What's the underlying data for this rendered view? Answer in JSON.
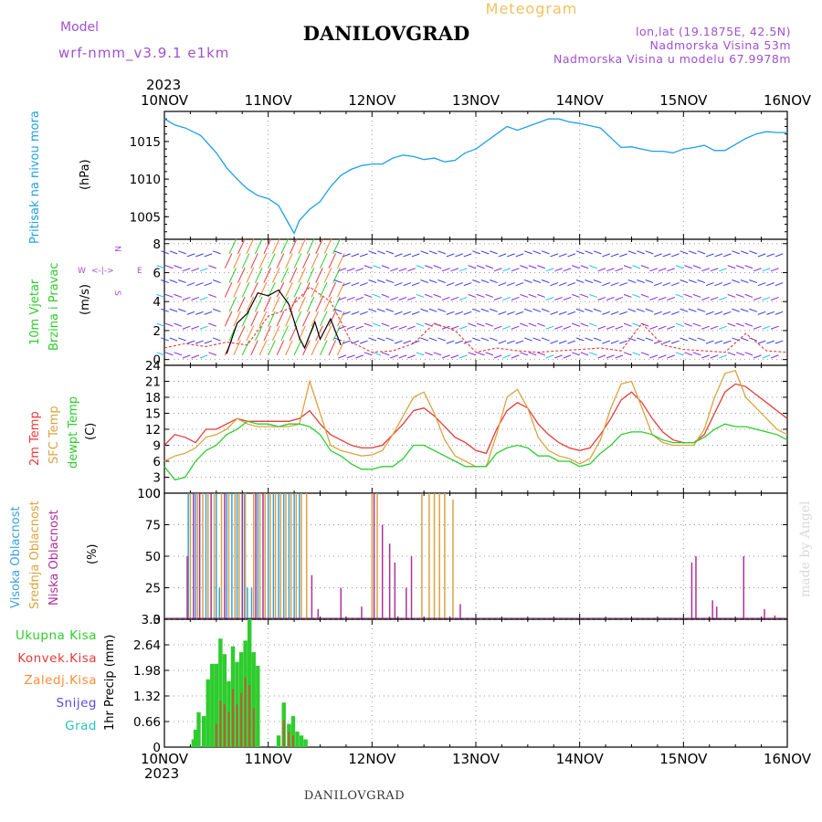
{
  "header": {
    "model_label": "Model",
    "model_name": "wrf-nmm_v3.9.1  e1km",
    "title": "DANILOVGRAD",
    "meteogram_label": "Meteogram",
    "lonlat": "lon,lat (19.1875E, 42.5N)",
    "elevation": "Nadmorska Visina 53m",
    "model_elevation": "Nadmorska Visina u modelu 67.9978m"
  },
  "time_axis": {
    "year": "2023",
    "ticks": [
      "10NOV",
      "11NOV",
      "12NOV",
      "13NOV",
      "14NOV",
      "15NOV",
      "16NOV"
    ]
  },
  "footer": {
    "station": "DANILOVGRAD",
    "credit": "made by Angel"
  },
  "colors": {
    "pressure": "#1ea0e6",
    "temp": "#e83a3a",
    "sfc_temp": "#d9a440",
    "dewpt": "#2ecc2e",
    "wind_speed": "#000000",
    "wind_dir": "#e83a3a",
    "high_cloud": "#3aa0e0",
    "mid_cloud": "#d9a440",
    "low_cloud": "#b0309a",
    "total_precip": "#2ecc2e",
    "conv_precip": "#e83a3a",
    "frozen_precip": "#ff8c3a",
    "snow": "#5a4bdc",
    "hail": "#2ec0c0",
    "compass": "#a050d0"
  },
  "chart_data": [
    {
      "type": "line",
      "title": "",
      "ylabel": "Pritisak na nivou mora",
      "units": "(hPa)",
      "ylim": [
        1002,
        1019
      ],
      "yticks": [
        1005,
        1010,
        1015
      ],
      "series": [
        {
          "name": "Pritisak na nivou mora",
          "x": [
            0,
            0.1,
            0.2,
            0.35,
            0.5,
            0.6,
            0.7,
            0.8,
            0.9,
            1.0,
            1.1,
            1.2,
            1.25,
            1.3,
            1.4,
            1.5,
            1.6,
            1.7,
            1.8,
            1.9,
            2.0,
            2.1,
            2.2,
            2.3,
            2.4,
            2.5,
            2.6,
            2.7,
            2.8,
            2.9,
            3.0,
            3.1,
            3.2,
            3.3,
            3.4,
            3.5,
            3.6,
            3.7,
            3.8,
            3.9,
            4.0,
            4.1,
            4.2,
            4.3,
            4.4,
            4.5,
            4.6,
            4.7,
            4.8,
            4.9,
            5.0,
            5.1,
            5.2,
            5.3,
            5.4,
            5.5,
            5.6,
            5.7,
            5.8,
            5.9,
            6.0
          ],
          "values": [
            1018,
            1017.2,
            1016.8,
            1015.8,
            1013.5,
            1011.5,
            1010,
            1008.7,
            1007.8,
            1007.4,
            1006.5,
            1004,
            1002.8,
            1004.5,
            1006,
            1007,
            1009,
            1010.5,
            1011.3,
            1011.8,
            1012,
            1012,
            1012.8,
            1013.2,
            1013,
            1012.6,
            1012.8,
            1012.3,
            1012.5,
            1013.5,
            1014,
            1015,
            1016,
            1017,
            1016.5,
            1017,
            1017.5,
            1018,
            1018,
            1017.6,
            1017.4,
            1017.1,
            1016.8,
            1015.5,
            1014.2,
            1014.3,
            1014,
            1013.7,
            1013.7,
            1013.5,
            1014,
            1014.2,
            1014.5,
            1013.8,
            1013.8,
            1014.6,
            1015.4,
            1016,
            1016.3,
            1016.2,
            1016.2
          ]
        }
      ]
    },
    {
      "type": "line",
      "title": "",
      "ylabel": "10m Vjetar Brzina i Pravac",
      "units": "(m/s)",
      "ylim": [
        -0.4,
        8.3
      ],
      "yticks": [
        0,
        2,
        4,
        6,
        8
      ],
      "compass": {
        "n": "N",
        "s": "S",
        "e": "E",
        "w": "W"
      },
      "series": [
        {
          "name": "Brzina",
          "x": [
            0.6,
            0.7,
            0.8,
            0.9,
            1.0,
            1.1,
            1.2,
            1.3,
            1.35,
            1.45,
            1.5,
            1.6,
            1.7
          ],
          "values": [
            0.4,
            2.5,
            3.2,
            4.6,
            4.4,
            4.8,
            3.8,
            1.5,
            0.8,
            2.6,
            1.4,
            2.8,
            1.0
          ]
        }
      ],
      "direction_series": {
        "name": "Pravac",
        "x": [
          0,
          0.2,
          0.4,
          0.6,
          0.8,
          1.0,
          1.2,
          1.4,
          1.6,
          1.8,
          2.0,
          2.2,
          2.4,
          2.6,
          2.8,
          3.0,
          3.2,
          3.4,
          3.6,
          3.8,
          4.0,
          4.2,
          4.4,
          4.6,
          4.8,
          5.0,
          5.2,
          5.4,
          5.6,
          5.8,
          6.0
        ],
        "values": [
          0.8,
          1.1,
          0.9,
          1.2,
          1.0,
          3.0,
          3.5,
          5.0,
          4.0,
          1.2,
          0.5,
          0.6,
          1.1,
          2.5,
          2.0,
          0.5,
          0.8,
          0.6,
          0.5,
          0.6,
          0.7,
          0.8,
          0.6,
          2.5,
          1.0,
          0.7,
          0.6,
          0.5,
          1.8,
          0.6,
          0.5
        ]
      }
    },
    {
      "type": "line",
      "title": "",
      "ylabels": [
        "2m Temp",
        "SFC Temp",
        "dewpt Temp"
      ],
      "units": "(C)",
      "ylim": [
        0,
        24
      ],
      "yticks": [
        0,
        3,
        6,
        9,
        12,
        15,
        18,
        21,
        24
      ],
      "x": [
        0,
        0.1,
        0.2,
        0.3,
        0.4,
        0.5,
        0.6,
        0.7,
        0.8,
        0.9,
        1.0,
        1.1,
        1.2,
        1.3,
        1.4,
        1.5,
        1.6,
        1.7,
        1.8,
        1.9,
        2.0,
        2.1,
        2.2,
        2.3,
        2.4,
        2.5,
        2.6,
        2.7,
        2.8,
        2.9,
        3.0,
        3.1,
        3.2,
        3.3,
        3.4,
        3.5,
        3.6,
        3.7,
        3.8,
        3.9,
        4.0,
        4.1,
        4.2,
        4.3,
        4.4,
        4.5,
        4.6,
        4.7,
        4.8,
        4.9,
        5.0,
        5.1,
        5.2,
        5.3,
        5.4,
        5.5,
        5.6,
        5.7,
        5.8,
        5.9,
        6.0
      ],
      "series": [
        {
          "name": "2m Temp",
          "values": [
            9,
            11,
            10.5,
            9.5,
            12,
            12,
            13,
            14,
            13.5,
            13.5,
            13.5,
            13.5,
            13.5,
            14,
            15.5,
            13,
            11,
            10,
            9,
            8.5,
            8.5,
            9,
            11,
            13,
            15.5,
            16,
            14.5,
            12.5,
            10.5,
            9.5,
            8,
            7.5,
            12,
            15.5,
            17,
            16,
            13,
            11,
            9.5,
            8.5,
            8,
            8.5,
            11,
            14,
            17.5,
            19,
            17,
            14,
            11.5,
            10,
            9.5,
            9.5,
            11,
            15,
            19,
            20.5,
            20,
            18.5,
            17,
            15.5,
            14
          ]
        },
        {
          "name": "SFC Temp",
          "values": [
            6,
            7,
            7.5,
            8.5,
            10.5,
            11,
            12,
            14,
            13,
            12.5,
            12.5,
            12.5,
            12.5,
            13,
            21,
            15,
            9,
            8,
            7.5,
            7,
            7.2,
            8,
            11,
            14.5,
            18,
            19,
            15,
            10,
            7,
            6,
            5,
            5,
            11,
            18,
            19.5,
            16,
            10.5,
            8,
            7,
            6.5,
            5.5,
            6.5,
            10,
            16,
            20.5,
            21,
            16,
            11,
            9.5,
            9,
            9,
            9,
            12,
            18,
            22.5,
            23,
            18,
            16,
            14,
            12,
            11
          ]
        },
        {
          "name": "dewpt Temp",
          "values": [
            5,
            2.5,
            3,
            6,
            8,
            9,
            11,
            12,
            13.5,
            13,
            13,
            12.5,
            13,
            13,
            12.5,
            11,
            8,
            7,
            5.5,
            4.5,
            4.5,
            5,
            5,
            6.5,
            9,
            9,
            8,
            7,
            6,
            5,
            5,
            5,
            7.5,
            8.5,
            9,
            8.5,
            7,
            7,
            6,
            6,
            5,
            5.5,
            7.5,
            9,
            11,
            11.5,
            11.5,
            11,
            10,
            9.5,
            9.5,
            9.5,
            10.5,
            12,
            13,
            12.5,
            12.5,
            12,
            11.5,
            11,
            10
          ]
        }
      ]
    },
    {
      "type": "bar",
      "title": "",
      "ylabels": [
        "Visoka Oblacnost",
        "Srednja Oblacnost",
        "Niska Oblacnost"
      ],
      "units": "(%)",
      "ylim": [
        0,
        100
      ],
      "yticks": [
        0,
        25,
        50,
        75,
        100
      ],
      "series": [
        {
          "name": "Visoka Oblacnost",
          "x": [
            0.23,
            0.3,
            0.4,
            0.5,
            0.53,
            0.6,
            0.65,
            0.7,
            0.77,
            0.8,
            0.84,
            0.9,
            1.0,
            1.05,
            1.1,
            1.15,
            1.2,
            1.25,
            1.3
          ],
          "values": [
            100,
            100,
            100,
            100,
            25,
            100,
            100,
            100,
            100,
            25,
            25,
            100,
            100,
            100,
            100,
            100,
            100,
            100,
            100
          ]
        },
        {
          "name": "Srednja Oblacnost",
          "x": [
            0.25,
            0.32,
            0.37,
            0.42,
            0.48,
            0.55,
            0.62,
            0.68,
            0.72,
            0.78,
            0.86,
            0.92,
            0.97,
            1.02,
            1.07,
            1.12,
            1.17,
            1.22,
            1.27,
            1.32,
            1.37,
            2.0,
            2.05,
            2.48,
            2.55,
            2.6,
            2.65,
            2.7,
            2.78
          ],
          "values": [
            100,
            100,
            100,
            100,
            100,
            100,
            100,
            100,
            100,
            100,
            100,
            100,
            100,
            100,
            100,
            100,
            100,
            100,
            100,
            100,
            100,
            100,
            100,
            100,
            100,
            100,
            100,
            100,
            95
          ]
        },
        {
          "name": "Niska Oblacnost",
          "x": [
            0.22,
            0.28,
            0.34,
            0.45,
            0.58,
            0.75,
            0.88,
            0.95,
            1.42,
            1.48,
            1.7,
            1.9,
            2.02,
            2.1,
            2.17,
            2.22,
            2.33,
            2.38,
            2.85,
            5.08,
            5.12,
            5.28,
            5.32,
            5.58,
            5.78,
            5.88
          ],
          "values": [
            50,
            100,
            100,
            100,
            100,
            100,
            100,
            100,
            35,
            8,
            25,
            10,
            100,
            75,
            60,
            45,
            25,
            50,
            12,
            45,
            50,
            15,
            10,
            50,
            8,
            3
          ]
        }
      ]
    },
    {
      "type": "bar",
      "title": "",
      "ylabel": "1hr Precip (mm)",
      "ylim": [
        0,
        3.3
      ],
      "yticks": [
        0,
        0.66,
        1.32,
        1.98,
        2.64,
        3.3
      ],
      "legend_labels": [
        "Ukupna Kisa",
        "Konvek.Kisa",
        "Zaledj.Kisa",
        "Snijeg",
        "Grad"
      ],
      "series": [
        {
          "name": "Ukupna Kisa",
          "x": [
            0.28,
            0.3,
            0.33,
            0.38,
            0.42,
            0.46,
            0.5,
            0.54,
            0.58,
            0.62,
            0.66,
            0.7,
            0.74,
            0.78,
            0.82,
            0.86,
            0.9,
            1.1,
            1.15,
            1.2,
            1.24,
            1.28,
            1.32,
            1.36
          ],
          "values": [
            0.2,
            0.45,
            0.9,
            0.8,
            1.75,
            2.15,
            2.15,
            2.8,
            2.4,
            1.7,
            2.6,
            2.2,
            2.45,
            2.75,
            3.3,
            2.45,
            2.1,
            0.3,
            1.15,
            0.6,
            0.8,
            0.4,
            0.3,
            0.2
          ]
        },
        {
          "name": "Konvek.Kisa",
          "x": [
            0.5,
            0.54,
            0.58,
            0.62,
            0.66,
            0.7,
            0.74,
            0.78,
            0.82,
            0.86,
            1.15,
            1.2,
            1.24
          ],
          "values": [
            0.6,
            1.2,
            1.1,
            0.9,
            1.5,
            1.1,
            1.4,
            1.8,
            1.6,
            1.0,
            0.7,
            0.4,
            0.3
          ]
        },
        {
          "name": "Zaledj.Kisa",
          "x": [],
          "values": []
        },
        {
          "name": "Snijeg",
          "x": [],
          "values": []
        },
        {
          "name": "Grad",
          "x": [],
          "values": []
        }
      ]
    }
  ]
}
